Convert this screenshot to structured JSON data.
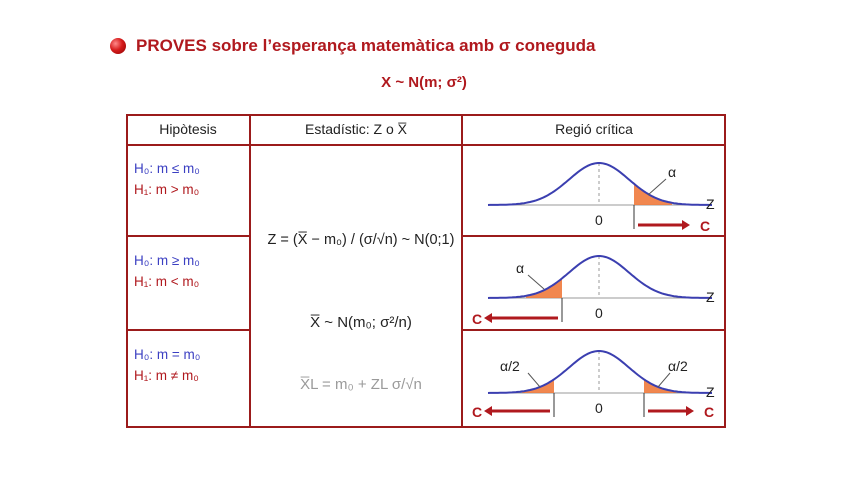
{
  "title": "PROVES sobre l’esperança matemàtica amb σ coneguda",
  "subtitle": "X ~ N(m; σ²)",
  "table": {
    "headers": [
      "Hipòtesis",
      "Estadístic: Z  o  X̅",
      "Regió crítica"
    ],
    "rows": [
      {
        "h0": "H₀: m ≤ m₀",
        "h1": "H₁: m > m₀",
        "labels": [
          "α"
        ]
      },
      {
        "h0": "H₀: m ≥ m₀",
        "h1": "H₁: m < m₀",
        "labels": [
          "α"
        ]
      },
      {
        "h0": "H₀: m = m₀",
        "h1": "H₁: m ≠ m₀",
        "labels": [
          "α/2",
          "α/2"
        ]
      }
    ],
    "formula_z": "Z = (X̅ − m₀) / (σ/√n) ~ N(0;1)",
    "formula_xbar": "X̅ ~ N(m₀; σ²/n)",
    "formula_limit": "X̅L = m₀ + ZL σ/√n"
  },
  "axis": {
    "zero": "0",
    "z": "Z",
    "critical": "C"
  },
  "colors": {
    "accent": "#b0191e",
    "h0": "#3b3fc2",
    "curve": "#3b3fb0",
    "shade": "#f07a3c",
    "border": "#9b1b1b"
  }
}
